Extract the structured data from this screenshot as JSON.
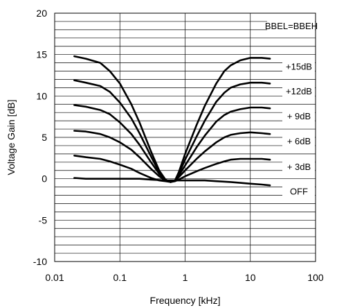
{
  "chart_data": {
    "type": "line",
    "xlabel": "Frequency [kHz]",
    "ylabel": "Voltage Gain [dB]",
    "x_scale": "log",
    "xlim": [
      0.01,
      100
    ],
    "ylim": [
      -10,
      20
    ],
    "x_ticks": [
      "0.01",
      "0.1",
      "1",
      "10",
      "100"
    ],
    "y_ticks": [
      "-10",
      "-5",
      "0",
      "5",
      "10",
      "15",
      "20"
    ],
    "grid": true,
    "annotations": [
      "BBEL=BBEH",
      "+15dB",
      "+12dB",
      "+ 9dB",
      "+ 6dB",
      "+ 3dB",
      "OFF"
    ],
    "series": [
      {
        "name": "+15dB",
        "x": [
          0.02,
          0.03,
          0.05,
          0.07,
          0.1,
          0.15,
          0.2,
          0.3,
          0.4,
          0.5,
          0.6,
          0.7,
          0.8,
          1,
          1.5,
          2,
          3,
          4,
          5,
          7,
          10,
          15,
          20
        ],
        "y": [
          14.8,
          14.5,
          14.0,
          13.0,
          11.5,
          9.0,
          6.8,
          3.3,
          1.0,
          -0.1,
          -0.4,
          -0.2,
          0.8,
          3.0,
          6.5,
          8.8,
          11.5,
          13.0,
          13.7,
          14.3,
          14.6,
          14.6,
          14.5
        ]
      },
      {
        "name": "+12dB",
        "x": [
          0.02,
          0.03,
          0.05,
          0.07,
          0.1,
          0.15,
          0.2,
          0.3,
          0.4,
          0.5,
          0.6,
          0.7,
          0.8,
          1,
          1.5,
          2,
          3,
          4,
          5,
          7,
          10,
          15,
          20
        ],
        "y": [
          11.9,
          11.6,
          11.2,
          10.5,
          9.2,
          7.3,
          5.5,
          2.7,
          0.8,
          -0.1,
          -0.4,
          -0.2,
          0.6,
          2.3,
          5.1,
          7.0,
          9.3,
          10.4,
          11.0,
          11.4,
          11.6,
          11.6,
          11.5
        ]
      },
      {
        "name": "+ 9dB",
        "x": [
          0.02,
          0.03,
          0.05,
          0.07,
          0.1,
          0.15,
          0.2,
          0.3,
          0.4,
          0.5,
          0.6,
          0.7,
          0.8,
          1,
          1.5,
          2,
          3,
          4,
          5,
          7,
          10,
          15,
          20
        ],
        "y": [
          8.9,
          8.7,
          8.3,
          7.8,
          6.8,
          5.4,
          4.1,
          2.0,
          0.6,
          -0.1,
          -0.4,
          -0.2,
          0.4,
          1.6,
          3.8,
          5.2,
          6.9,
          7.7,
          8.1,
          8.4,
          8.6,
          8.6,
          8.5
        ]
      },
      {
        "name": "+ 6dB",
        "x": [
          0.02,
          0.03,
          0.05,
          0.07,
          0.1,
          0.15,
          0.2,
          0.3,
          0.4,
          0.5,
          0.6,
          0.7,
          0.8,
          1,
          1.5,
          2,
          3,
          4,
          5,
          7,
          10,
          15,
          20
        ],
        "y": [
          5.8,
          5.7,
          5.4,
          5.0,
          4.4,
          3.5,
          2.6,
          1.2,
          0.3,
          -0.2,
          -0.4,
          -0.2,
          0.2,
          1.0,
          2.4,
          3.3,
          4.4,
          5.0,
          5.3,
          5.5,
          5.6,
          5.5,
          5.4
        ]
      },
      {
        "name": "+ 3dB",
        "x": [
          0.02,
          0.03,
          0.05,
          0.07,
          0.1,
          0.15,
          0.2,
          0.3,
          0.4,
          0.5,
          0.6,
          0.7,
          0.8,
          1,
          1.5,
          2,
          3,
          4,
          5,
          7,
          10,
          15,
          20
        ],
        "y": [
          2.8,
          2.6,
          2.4,
          2.1,
          1.7,
          1.2,
          0.7,
          0.1,
          -0.2,
          -0.3,
          -0.4,
          -0.3,
          -0.1,
          0.3,
          0.9,
          1.3,
          1.8,
          2.1,
          2.3,
          2.4,
          2.4,
          2.4,
          2.3
        ]
      },
      {
        "name": "OFF",
        "x": [
          0.02,
          0.03,
          0.05,
          0.07,
          0.1,
          0.2,
          0.3,
          0.5,
          0.7,
          1,
          2,
          3,
          5,
          7,
          10,
          15,
          20
        ],
        "y": [
          0.1,
          0.0,
          0.0,
          0.0,
          0.0,
          0.0,
          -0.1,
          -0.2,
          -0.2,
          -0.2,
          -0.2,
          -0.3,
          -0.4,
          -0.5,
          -0.6,
          -0.7,
          -0.8
        ]
      }
    ]
  }
}
